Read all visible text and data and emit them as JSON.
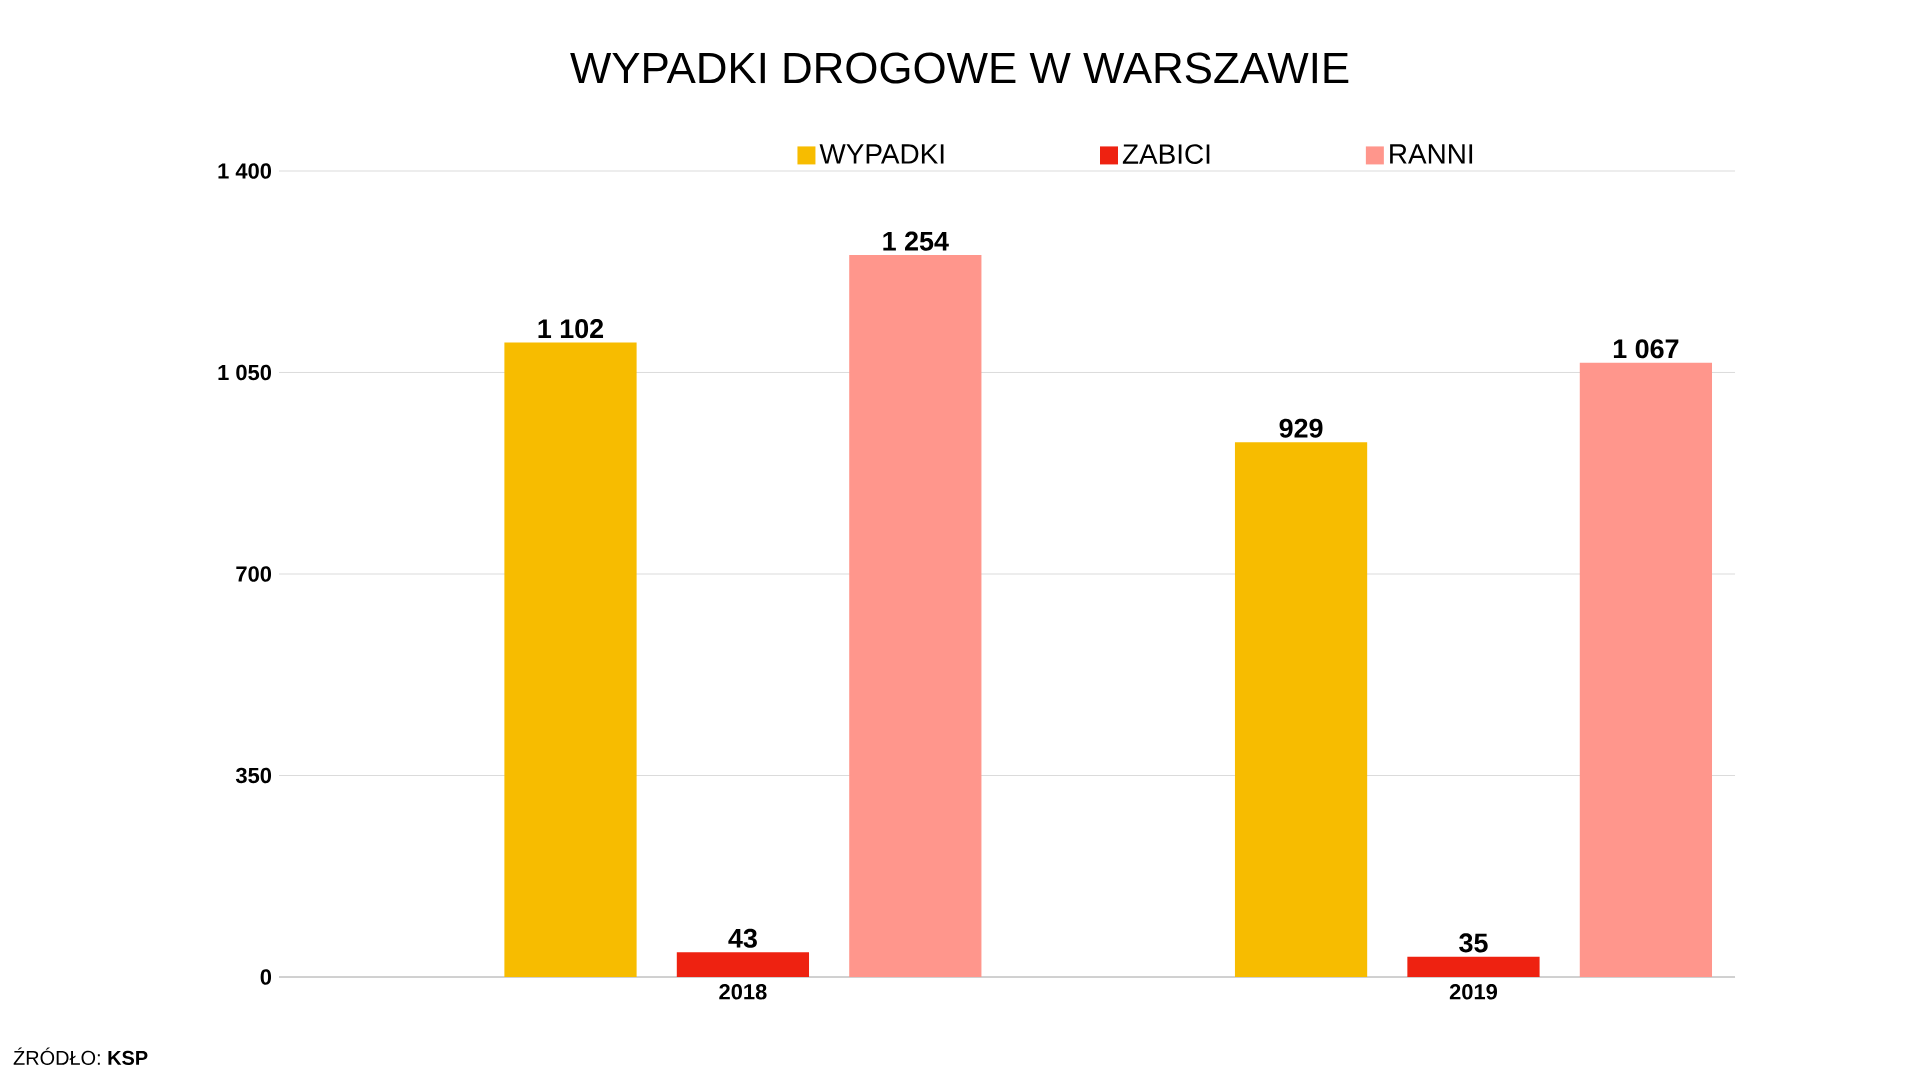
{
  "chart_data": {
    "type": "bar",
    "title": "WYPADKI DROGOWE W WARSZAWIE",
    "categories": [
      "2018",
      "2019"
    ],
    "series": [
      {
        "name": "WYPADKI",
        "color": "#f7bc00",
        "values": [
          1102,
          929
        ],
        "value_labels": [
          "1 102",
          "929"
        ]
      },
      {
        "name": "ZABICI",
        "color": "#ee2211",
        "values": [
          43,
          35
        ],
        "value_labels": [
          "43",
          "35"
        ]
      },
      {
        "name": "RANNI",
        "color": "#ff968c",
        "values": [
          1254,
          1067
        ],
        "value_labels": [
          "1 254",
          "1 067"
        ]
      }
    ],
    "ylim": [
      0,
      1400
    ],
    "yticks": [
      0,
      {
        "value": 350,
        "label": "350"
      },
      {
        "value": 700,
        "label": "700"
      },
      {
        "value": 1050,
        "label": "1 050"
      },
      {
        "value": 1400,
        "label": "1 400"
      }
    ],
    "grid": "y",
    "legend": "top",
    "annotations": [
      "ŹRÓDŁO: **KSP**"
    ]
  }
}
